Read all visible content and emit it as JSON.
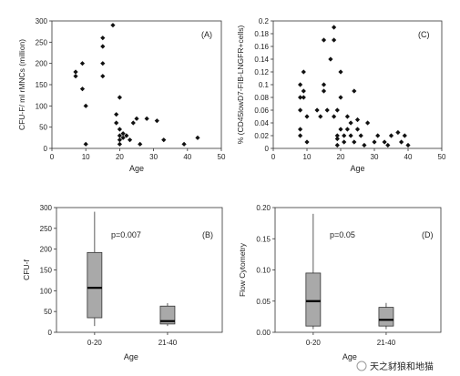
{
  "chart_data": [
    {
      "type": "scatter",
      "panel_label": "(A)",
      "xlabel": "Age",
      "ylabel": "CFU-F/ ml rMNCs (million)",
      "xlim": [
        0,
        50
      ],
      "ylim": [
        0,
        300
      ],
      "xticks": [
        "0",
        "10",
        "20",
        "30",
        "40",
        "50"
      ],
      "yticks": [
        "0",
        "50",
        "100",
        "150",
        "200",
        "250",
        "300"
      ],
      "points": [
        [
          7,
          180
        ],
        [
          7,
          170
        ],
        [
          9,
          140
        ],
        [
          9,
          200
        ],
        [
          10,
          100
        ],
        [
          10,
          10
        ],
        [
          15,
          260
        ],
        [
          15,
          240
        ],
        [
          15,
          200
        ],
        [
          15,
          170
        ],
        [
          18,
          290
        ],
        [
          19,
          80
        ],
        [
          19,
          60
        ],
        [
          20,
          45
        ],
        [
          20,
          30
        ],
        [
          20,
          20
        ],
        [
          20,
          10
        ],
        [
          20,
          120
        ],
        [
          21,
          35
        ],
        [
          21,
          25
        ],
        [
          22,
          30
        ],
        [
          23,
          20
        ],
        [
          24,
          60
        ],
        [
          25,
          70
        ],
        [
          26,
          10
        ],
        [
          28,
          70
        ],
        [
          31,
          65
        ],
        [
          33,
          20
        ],
        [
          39,
          10
        ],
        [
          43,
          25
        ]
      ]
    },
    {
      "type": "scatter",
      "panel_label": "(C)",
      "xlabel": "Age",
      "ylabel": "% (CD45lowD7-FIB-LNGFR+cells)",
      "xlim": [
        0,
        50
      ],
      "ylim": [
        0,
        0.2
      ],
      "xticks": [
        "0",
        "10",
        "20",
        "30",
        "40",
        "50"
      ],
      "yticks": [
        "0",
        "0.02",
        "0.04",
        "0.06",
        "0.08",
        "0.1",
        "0.12",
        "0.14",
        "0.16",
        "0.18",
        "0.2"
      ],
      "points": [
        [
          8,
          0.1
        ],
        [
          8,
          0.08
        ],
        [
          8,
          0.06
        ],
        [
          8,
          0.03
        ],
        [
          8,
          0.02
        ],
        [
          9,
          0.12
        ],
        [
          9,
          0.09
        ],
        [
          9,
          0.08
        ],
        [
          10,
          0.05
        ],
        [
          10,
          0.01
        ],
        [
          13,
          0.06
        ],
        [
          14,
          0.05
        ],
        [
          15,
          0.17
        ],
        [
          15,
          0.1
        ],
        [
          15,
          0.09
        ],
        [
          16,
          0.06
        ],
        [
          17,
          0.14
        ],
        [
          18,
          0.19
        ],
        [
          18,
          0.17
        ],
        [
          18,
          0.05
        ],
        [
          19,
          0.06
        ],
        [
          19,
          0.02
        ],
        [
          19,
          0.015
        ],
        [
          19,
          0.005
        ],
        [
          20,
          0.12
        ],
        [
          20,
          0.08
        ],
        [
          20,
          0.03
        ],
        [
          21,
          0.01
        ],
        [
          21,
          0.02
        ],
        [
          22,
          0.05
        ],
        [
          22,
          0.03
        ],
        [
          23,
          0.04
        ],
        [
          23,
          0.02
        ],
        [
          24,
          0.01
        ],
        [
          24,
          0.09
        ],
        [
          25,
          0.045
        ],
        [
          25,
          0.03
        ],
        [
          26,
          0.02
        ],
        [
          27,
          0.005
        ],
        [
          28,
          0.04
        ],
        [
          30,
          0.01
        ],
        [
          31,
          0.02
        ],
        [
          33,
          0.01
        ],
        [
          34,
          0.005
        ],
        [
          35,
          0.02
        ],
        [
          37,
          0.025
        ],
        [
          38,
          0.01
        ],
        [
          39,
          0.02
        ],
        [
          40,
          0.005
        ]
      ]
    },
    {
      "type": "box",
      "panel_label": "(B)",
      "annotation": "p=0.007",
      "xlabel": "Age",
      "ylabel": "CFU-f",
      "ylim": [
        0,
        300
      ],
      "yticks": [
        "0",
        "50",
        "100",
        "150",
        "200",
        "250",
        "300"
      ],
      "categories": [
        "0-20",
        "21-40"
      ],
      "boxes": [
        {
          "min": 15,
          "q1": 35,
          "median": 107,
          "q3": 192,
          "max": 290
        },
        {
          "min": 15,
          "q1": 20,
          "median": 27,
          "q3": 63,
          "max": 70
        }
      ]
    },
    {
      "type": "box",
      "panel_label": "(D)",
      "annotation": "p=0.05",
      "xlabel": "Age",
      "ylabel": "Flow Cytometry",
      "ylim": [
        0,
        0.2
      ],
      "yticks": [
        "0.00",
        "0.05",
        "0.10",
        "0.15",
        "0.20"
      ],
      "categories": [
        "0-20",
        "21-40"
      ],
      "boxes": [
        {
          "min": 0.005,
          "q1": 0.01,
          "median": 0.05,
          "q3": 0.095,
          "max": 0.19
        },
        {
          "min": 0.005,
          "q1": 0.01,
          "median": 0.02,
          "q3": 0.04,
          "max": 0.047
        }
      ]
    }
  ],
  "watermark": "天之豺狼和地猫",
  "style": {
    "marker_color": "#111111",
    "box_fill": "#a9a9a9",
    "axis_color": "#333333"
  }
}
